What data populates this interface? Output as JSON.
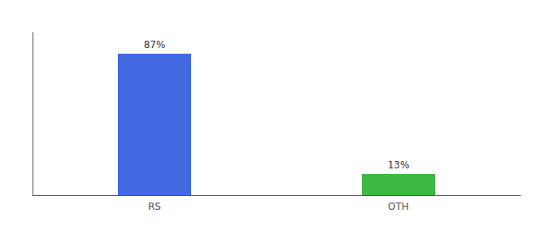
{
  "chart_data": {
    "type": "bar",
    "categories": [
      "RS",
      "OTH"
    ],
    "values": [
      87,
      13
    ],
    "value_labels": [
      "87%",
      "13%"
    ],
    "colors": [
      "#4169e1",
      "#3cb843"
    ],
    "ylim": [
      0,
      100
    ],
    "data_labels": true,
    "tick_labels": "x",
    "grid": false
  }
}
